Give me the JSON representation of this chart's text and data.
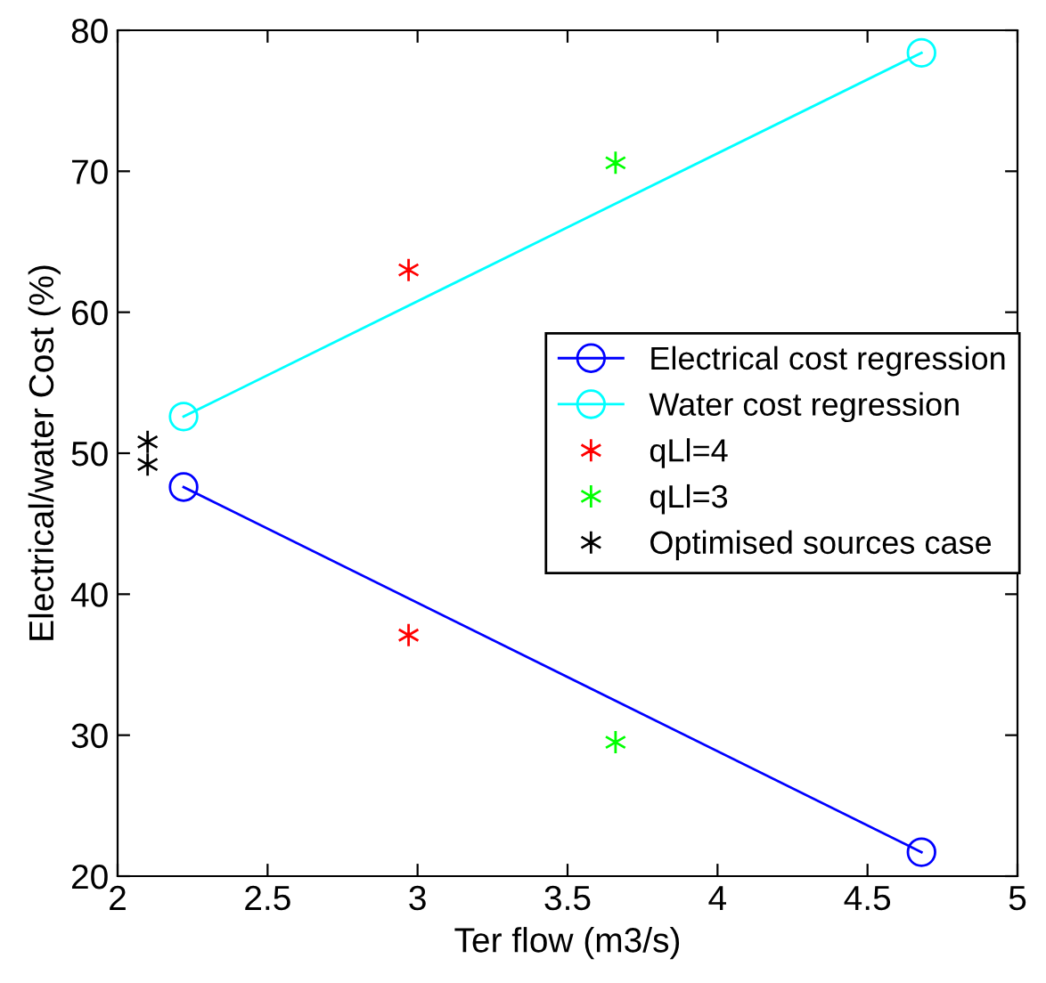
{
  "chart_data": {
    "type": "line",
    "xlabel": "Ter flow (m3/s)",
    "ylabel": "Electrical/water Cost (%)",
    "xlim": [
      2,
      5
    ],
    "xticks": [
      2,
      2.5,
      3,
      3.5,
      4,
      4.5,
      5
    ],
    "ylim": [
      20,
      80
    ],
    "yticks": [
      20,
      30,
      40,
      50,
      60,
      70,
      80
    ],
    "grid": false,
    "legend": "right",
    "series": [
      {
        "name": "Electrical cost regression",
        "marker": "circle",
        "color": "#0000ff",
        "x": [
          2.22,
          4.68
        ],
        "values": [
          47.6,
          21.7
        ]
      },
      {
        "name": "Water cost regression",
        "marker": "circle",
        "color": "#00ffff",
        "x": [
          2.22,
          4.68
        ],
        "values": [
          52.6,
          78.4
        ]
      },
      {
        "name": "qLl=4",
        "type": "scatter",
        "marker": "cross",
        "color": "#ff0000",
        "x": [
          2.97,
          2.97
        ],
        "values": [
          63.0,
          37.1
        ]
      },
      {
        "name": "qLl=3",
        "type": "scatter",
        "marker": "cross",
        "color": "#00ff00",
        "x": [
          3.66,
          3.66
        ],
        "values": [
          70.6,
          29.5
        ]
      },
      {
        "name": "Optimised sources case",
        "type": "scatter",
        "marker": "cross",
        "color": "#000000",
        "x": [
          2.1,
          2.1
        ],
        "values": [
          50.8,
          49.2
        ]
      }
    ]
  }
}
